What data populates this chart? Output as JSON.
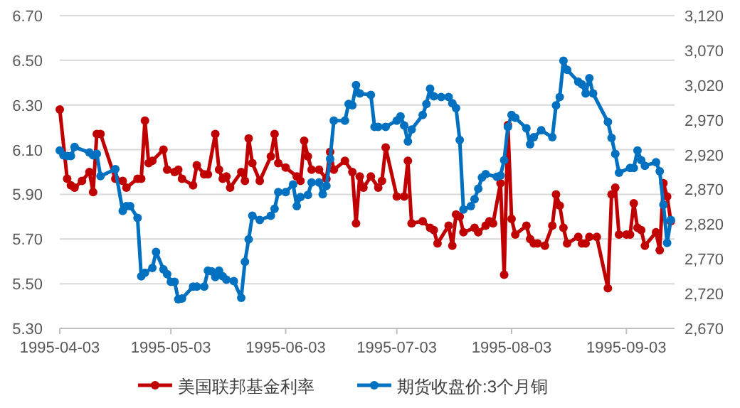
{
  "chart_data": {
    "type": "line",
    "legend": "bottom",
    "grid": "y",
    "marker": "circle",
    "line_style": "solid",
    "xlim": [
      "1995-04-03",
      "1995-09-16"
    ],
    "xticks": [
      "1995-04-03",
      "1995-05-03",
      "1995-06-03",
      "1995-07-03",
      "1995-08-03",
      "1995-09-03"
    ],
    "ylim": [
      5.3,
      6.7
    ],
    "yticks": [
      {
        "value": 5.3,
        "label": "5.30"
      },
      {
        "value": 5.5,
        "label": "5.50"
      },
      {
        "value": 5.7,
        "label": "5.70"
      },
      {
        "value": 5.9,
        "label": "5.90"
      },
      {
        "value": 6.1,
        "label": "6.10"
      },
      {
        "value": 6.3,
        "label": "6.30"
      },
      {
        "value": 6.5,
        "label": "6.50"
      },
      {
        "value": 6.7,
        "label": "6.70"
      }
    ],
    "y2lim": [
      2670,
      3120
    ],
    "y2ticks": [
      {
        "value": 2670,
        "label": "2,670"
      },
      {
        "value": 2720,
        "label": "2,720"
      },
      {
        "value": 2770,
        "label": "2,770"
      },
      {
        "value": 2820,
        "label": "2,820"
      },
      {
        "value": 2870,
        "label": "2,870"
      },
      {
        "value": 2920,
        "label": "2,920"
      },
      {
        "value": 2970,
        "label": "2,970"
      },
      {
        "value": 3020,
        "label": "3,020"
      },
      {
        "value": 3070,
        "label": "3,070"
      },
      {
        "value": 3120,
        "label": "3,120"
      }
    ],
    "series": [
      {
        "name": "美国联邦基金利率",
        "color": "#c00000",
        "x": [
          "1995-04-03",
          "1995-04-05",
          "1995-04-06",
          "1995-04-07",
          "1995-04-09",
          "1995-04-11",
          "1995-04-12",
          "1995-04-13",
          "1995-04-14",
          "1995-04-18",
          "1995-04-20",
          "1995-04-21",
          "1995-04-24",
          "1995-04-25",
          "1995-04-26",
          "1995-04-27",
          "1995-04-28",
          "1995-05-01",
          "1995-05-02",
          "1995-05-04",
          "1995-05-05",
          "1995-05-06",
          "1995-05-09",
          "1995-05-10",
          "1995-05-12",
          "1995-05-13",
          "1995-05-15",
          "1995-05-16",
          "1995-05-17",
          "1995-05-18",
          "1995-05-19",
          "1995-05-22",
          "1995-05-23",
          "1995-05-24",
          "1995-05-25",
          "1995-05-27",
          "1995-05-30",
          "1995-05-31",
          "1995-06-01",
          "1995-06-03",
          "1995-06-06",
          "1995-06-07",
          "1995-06-08",
          "1995-06-09",
          "1995-06-10",
          "1995-06-12",
          "1995-06-14",
          "1995-06-15",
          "1995-06-16",
          "1995-06-19",
          "1995-06-21",
          "1995-06-22",
          "1995-06-23",
          "1995-06-24",
          "1995-06-26",
          "1995-06-28",
          "1995-06-29",
          "1995-06-30",
          "1995-07-03",
          "1995-07-05",
          "1995-07-06",
          "1995-07-07",
          "1995-07-10",
          "1995-07-12",
          "1995-07-13",
          "1995-07-14",
          "1995-07-17",
          "1995-07-18",
          "1995-07-19",
          "1995-07-20",
          "1995-07-21",
          "1995-07-24",
          "1995-07-25",
          "1995-07-27",
          "1995-07-28",
          "1995-07-29",
          "1995-07-31",
          "1995-08-01",
          "1995-08-02",
          "1995-08-03",
          "1995-08-04",
          "1995-08-07",
          "1995-08-08",
          "1995-08-09",
          "1995-08-10",
          "1995-08-12",
          "1995-08-14",
          "1995-08-15",
          "1995-08-16",
          "1995-08-17",
          "1995-08-18",
          "1995-08-21",
          "1995-08-22",
          "1995-08-23",
          "1995-08-24",
          "1995-08-26",
          "1995-08-29",
          "1995-08-30",
          "1995-08-31",
          "1995-09-01",
          "1995-09-03",
          "1995-09-04",
          "1995-09-05",
          "1995-09-06",
          "1995-09-07",
          "1995-09-08",
          "1995-09-11",
          "1995-09-12",
          "1995-09-13",
          "1995-09-14",
          "1995-09-15"
        ],
        "values": [
          6.28,
          5.97,
          5.94,
          5.93,
          5.96,
          6.0,
          5.91,
          6.17,
          6.17,
          5.97,
          5.96,
          5.93,
          5.97,
          5.97,
          6.23,
          6.04,
          6.05,
          6.1,
          6.01,
          6.0,
          6.01,
          5.97,
          5.94,
          6.03,
          5.99,
          5.99,
          6.17,
          6.01,
          5.97,
          5.98,
          5.93,
          6.0,
          5.96,
          6.15,
          6.04,
          5.96,
          6.07,
          6.17,
          6.04,
          6.02,
          5.98,
          5.96,
          6.14,
          6.07,
          6.01,
          6.01,
          5.97,
          6.09,
          6.01,
          6.05,
          6.0,
          5.77,
          5.98,
          5.93,
          5.98,
          5.93,
          5.96,
          6.11,
          5.89,
          5.89,
          6.05,
          5.77,
          5.78,
          5.75,
          5.74,
          5.68,
          5.76,
          5.67,
          5.81,
          5.8,
          5.73,
          5.75,
          5.73,
          5.76,
          5.78,
          5.77,
          5.95,
          5.54,
          6.21,
          5.79,
          5.72,
          5.76,
          5.7,
          5.68,
          5.68,
          5.67,
          5.76,
          5.9,
          5.85,
          5.75,
          5.68,
          5.71,
          5.68,
          5.68,
          5.71,
          5.71,
          5.48,
          5.9,
          5.93,
          5.72,
          5.72,
          5.72,
          5.86,
          5.75,
          5.74,
          5.67,
          5.73,
          5.65,
          5.95,
          5.89,
          5.78
        ]
      },
      {
        "name": "期货收盘价:3个月铜",
        "color": "#0070c0",
        "axis": "y2",
        "x": [
          "1995-04-03",
          "1995-04-04",
          "1995-04-05",
          "1995-04-06",
          "1995-04-07",
          "1995-04-11",
          "1995-04-12",
          "1995-04-13",
          "1995-04-14",
          "1995-04-18",
          "1995-04-20",
          "1995-04-21",
          "1995-04-22",
          "1995-04-24",
          "1995-04-25",
          "1995-04-26",
          "1995-04-28",
          "1995-04-29",
          "1995-05-01",
          "1995-05-02",
          "1995-05-03",
          "1995-05-04",
          "1995-05-05",
          "1995-05-06",
          "1995-05-09",
          "1995-05-10",
          "1995-05-12",
          "1995-05-13",
          "1995-05-14",
          "1995-05-15",
          "1995-05-16",
          "1995-05-17",
          "1995-05-18",
          "1995-05-20",
          "1995-05-22",
          "1995-05-23",
          "1995-05-24",
          "1995-05-25",
          "1995-05-27",
          "1995-05-30",
          "1995-05-31",
          "1995-06-01",
          "1995-06-03",
          "1995-06-05",
          "1995-06-06",
          "1995-06-07",
          "1995-06-09",
          "1995-06-10",
          "1995-06-12",
          "1995-06-13",
          "1995-06-14",
          "1995-06-15",
          "1995-06-16",
          "1995-06-19",
          "1995-06-20",
          "1995-06-21",
          "1995-06-22",
          "1995-06-23",
          "1995-06-26",
          "1995-06-27",
          "1995-06-28",
          "1995-06-30",
          "1995-07-03",
          "1995-07-04",
          "1995-07-05",
          "1995-07-06",
          "1995-07-07",
          "1995-07-10",
          "1995-07-11",
          "1995-07-12",
          "1995-07-13",
          "1995-07-15",
          "1995-07-17",
          "1995-07-18",
          "1995-07-19",
          "1995-07-20",
          "1995-07-21",
          "1995-07-23",
          "1995-07-24",
          "1995-07-25",
          "1995-07-26",
          "1995-07-27",
          "1995-07-30",
          "1995-07-31",
          "1995-08-01",
          "1995-08-02",
          "1995-08-03",
          "1995-08-04",
          "1995-08-07",
          "1995-08-08",
          "1995-08-09",
          "1995-08-11",
          "1995-08-14",
          "1995-08-15",
          "1995-08-16",
          "1995-08-17",
          "1995-08-18",
          "1995-08-21",
          "1995-08-22",
          "1995-08-23",
          "1995-08-24",
          "1995-08-25",
          "1995-08-29",
          "1995-08-30",
          "1995-08-31",
          "1995-09-01",
          "1995-09-04",
          "1995-09-05",
          "1995-09-06",
          "1995-09-07",
          "1995-09-08",
          "1995-09-11",
          "1995-09-12",
          "1995-09-13",
          "1995-09-14",
          "1995-09-15"
        ],
        "values": [
          2926,
          2919,
          2918,
          2918,
          2931,
          2923,
          2919,
          2921,
          2889,
          2899,
          2839,
          2846,
          2846,
          2829,
          2745,
          2750,
          2757,
          2780,
          2755,
          2748,
          2737,
          2737,
          2712,
          2713,
          2730,
          2730,
          2730,
          2753,
          2752,
          2744,
          2753,
          2745,
          2740,
          2738,
          2714,
          2766,
          2798,
          2832,
          2826,
          2832,
          2842,
          2866,
          2866,
          2877,
          2846,
          2859,
          2862,
          2880,
          2880,
          2863,
          2875,
          2914,
          2969,
          2969,
          2993,
          2991,
          3020,
          3008,
          3006,
          2960,
          2960,
          2960,
          2969,
          2975,
          2962,
          2939,
          2956,
          2977,
          2993,
          3015,
          3004,
          3003,
          3003,
          2994,
          2987,
          2941,
          2841,
          2846,
          2856,
          2871,
          2887,
          2892,
          2888,
          2890,
          2912,
          2960,
          2977,
          2973,
          2958,
          2935,
          2945,
          2955,
          2945,
          2991,
          3003,
          3055,
          3042,
          3025,
          3021,
          3008,
          3030,
          3008,
          2967,
          2944,
          2921,
          2894,
          2901,
          2901,
          2926,
          2912,
          2904,
          2909,
          2896,
          2848,
          2793,
          2826
        ]
      }
    ]
  }
}
